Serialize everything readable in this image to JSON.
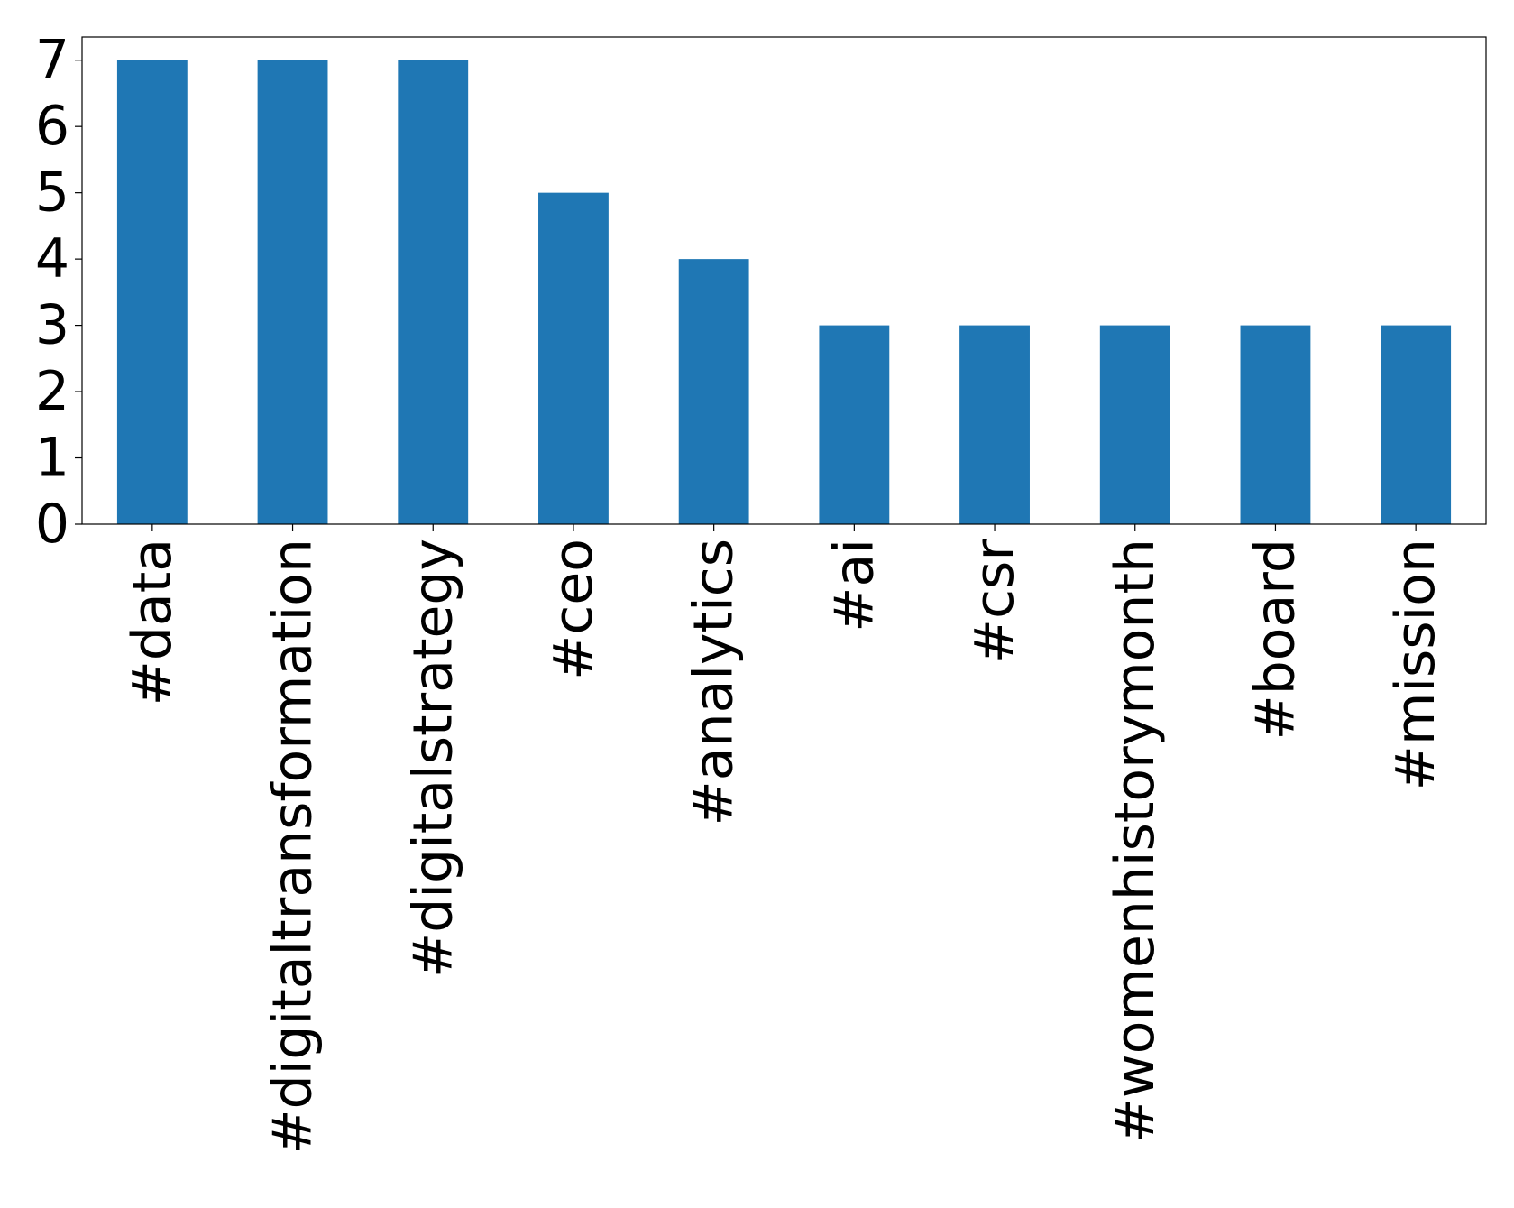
{
  "chart_data": {
    "type": "bar",
    "categories": [
      "#data",
      "#digitaltransformation",
      "#digitalstrategy",
      "#ceo",
      "#analytics",
      "#ai",
      "#csr",
      "#womenhistorymonth",
      "#board",
      "#mission"
    ],
    "values": [
      7,
      7,
      7,
      5,
      4,
      3,
      3,
      3,
      3,
      3
    ],
    "color": "#1f77b4",
    "ylim": [
      0,
      7.35
    ],
    "yticks": [
      0,
      1,
      2,
      3,
      4,
      5,
      6,
      7
    ],
    "grid": false
  }
}
